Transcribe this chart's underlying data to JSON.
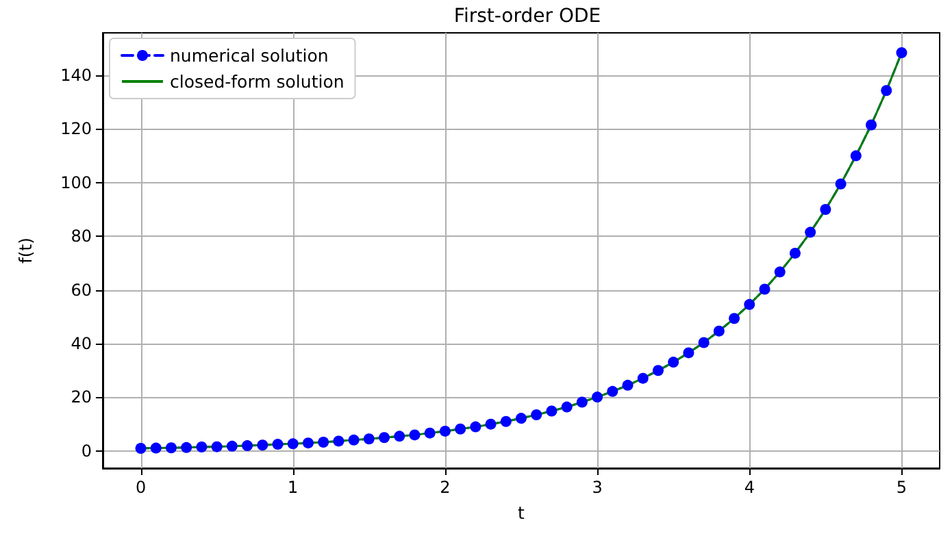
{
  "chart_data": {
    "type": "line",
    "title": "First-order ODE",
    "xlabel": "t",
    "ylabel": "f(t)",
    "x": [
      0,
      0.1,
      0.2,
      0.3,
      0.4,
      0.5,
      0.6,
      0.7,
      0.8,
      0.9,
      1,
      1.1,
      1.2,
      1.3,
      1.4,
      1.5,
      1.6,
      1.7,
      1.8,
      1.9,
      2,
      2.1,
      2.2,
      2.3,
      2.4,
      2.5,
      2.6,
      2.7,
      2.8,
      2.9,
      3,
      3.1,
      3.2,
      3.3,
      3.4,
      3.5,
      3.6,
      3.7,
      3.8,
      3.9,
      4,
      4.1,
      4.2,
      4.3,
      4.4,
      4.5,
      4.6,
      4.7,
      4.8,
      4.9,
      5
    ],
    "series": [
      {
        "name": "numerical solution",
        "color": "#0000ff",
        "marker": "circle",
        "line_style": "dashed",
        "values": [
          1.0,
          1.1,
          1.2,
          1.3,
          1.5,
          1.6,
          1.8,
          2.0,
          2.2,
          2.5,
          2.7,
          3.0,
          3.3,
          3.7,
          4.1,
          4.5,
          5.0,
          5.5,
          6.0,
          6.7,
          7.4,
          8.2,
          9.0,
          10.0,
          11.0,
          12.2,
          13.5,
          14.9,
          16.4,
          18.2,
          20.1,
          22.2,
          24.5,
          27.1,
          30.0,
          33.1,
          36.6,
          40.4,
          44.7,
          49.4,
          54.6,
          60.3,
          66.7,
          73.7,
          81.5,
          90.0,
          99.5,
          110.0,
          121.5,
          134.3,
          148.4
        ]
      },
      {
        "name": "closed-form solution",
        "color": "#008000",
        "marker": "none",
        "line_style": "solid",
        "values": [
          1.0,
          1.1,
          1.2,
          1.3,
          1.5,
          1.6,
          1.8,
          2.0,
          2.2,
          2.5,
          2.7,
          3.0,
          3.3,
          3.7,
          4.1,
          4.5,
          5.0,
          5.5,
          6.0,
          6.7,
          7.4,
          8.2,
          9.0,
          10.0,
          11.0,
          12.2,
          13.5,
          14.9,
          16.4,
          18.2,
          20.1,
          22.2,
          24.5,
          27.1,
          30.0,
          33.1,
          36.6,
          40.4,
          44.7,
          49.4,
          54.6,
          60.3,
          66.7,
          73.7,
          81.5,
          90.0,
          99.5,
          110.0,
          121.5,
          134.3,
          148.4
        ]
      }
    ],
    "xlim": [
      -0.25,
      5.25
    ],
    "xticks": [
      0,
      1,
      2,
      3,
      4,
      5
    ],
    "ylim": [
      -6.4,
      155.8
    ],
    "yticks": [
      0,
      20,
      40,
      60,
      80,
      100,
      120,
      140
    ],
    "grid": true,
    "legend": "top left"
  }
}
